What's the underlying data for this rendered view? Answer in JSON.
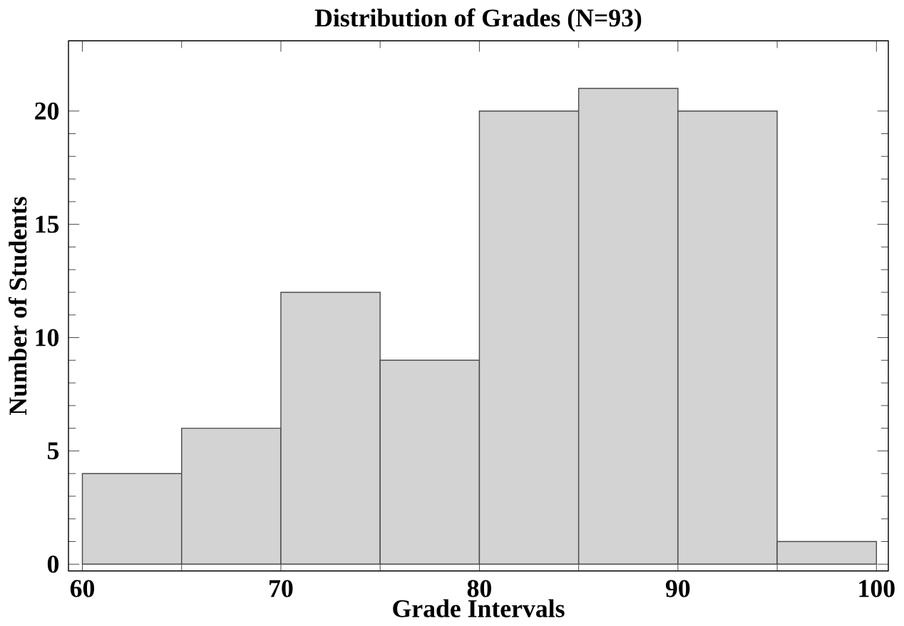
{
  "chart_data": {
    "type": "histogram",
    "title": "Distribution of Grades (N=93)",
    "xlabel": "Grade Intervals",
    "ylabel": "Number of Students",
    "bins": [
      60,
      65,
      70,
      75,
      80,
      85,
      90,
      95,
      100
    ],
    "values": [
      4,
      6,
      12,
      9,
      20,
      21,
      20,
      1
    ],
    "color": "#d3d3d3",
    "xlim": [
      59.3,
      100.6
    ],
    "ylim": [
      -0.3,
      23.1
    ],
    "xticks": [
      60,
      70,
      80,
      90,
      100
    ],
    "yticks": [
      0,
      5,
      10,
      15,
      20
    ],
    "grid": false
  }
}
